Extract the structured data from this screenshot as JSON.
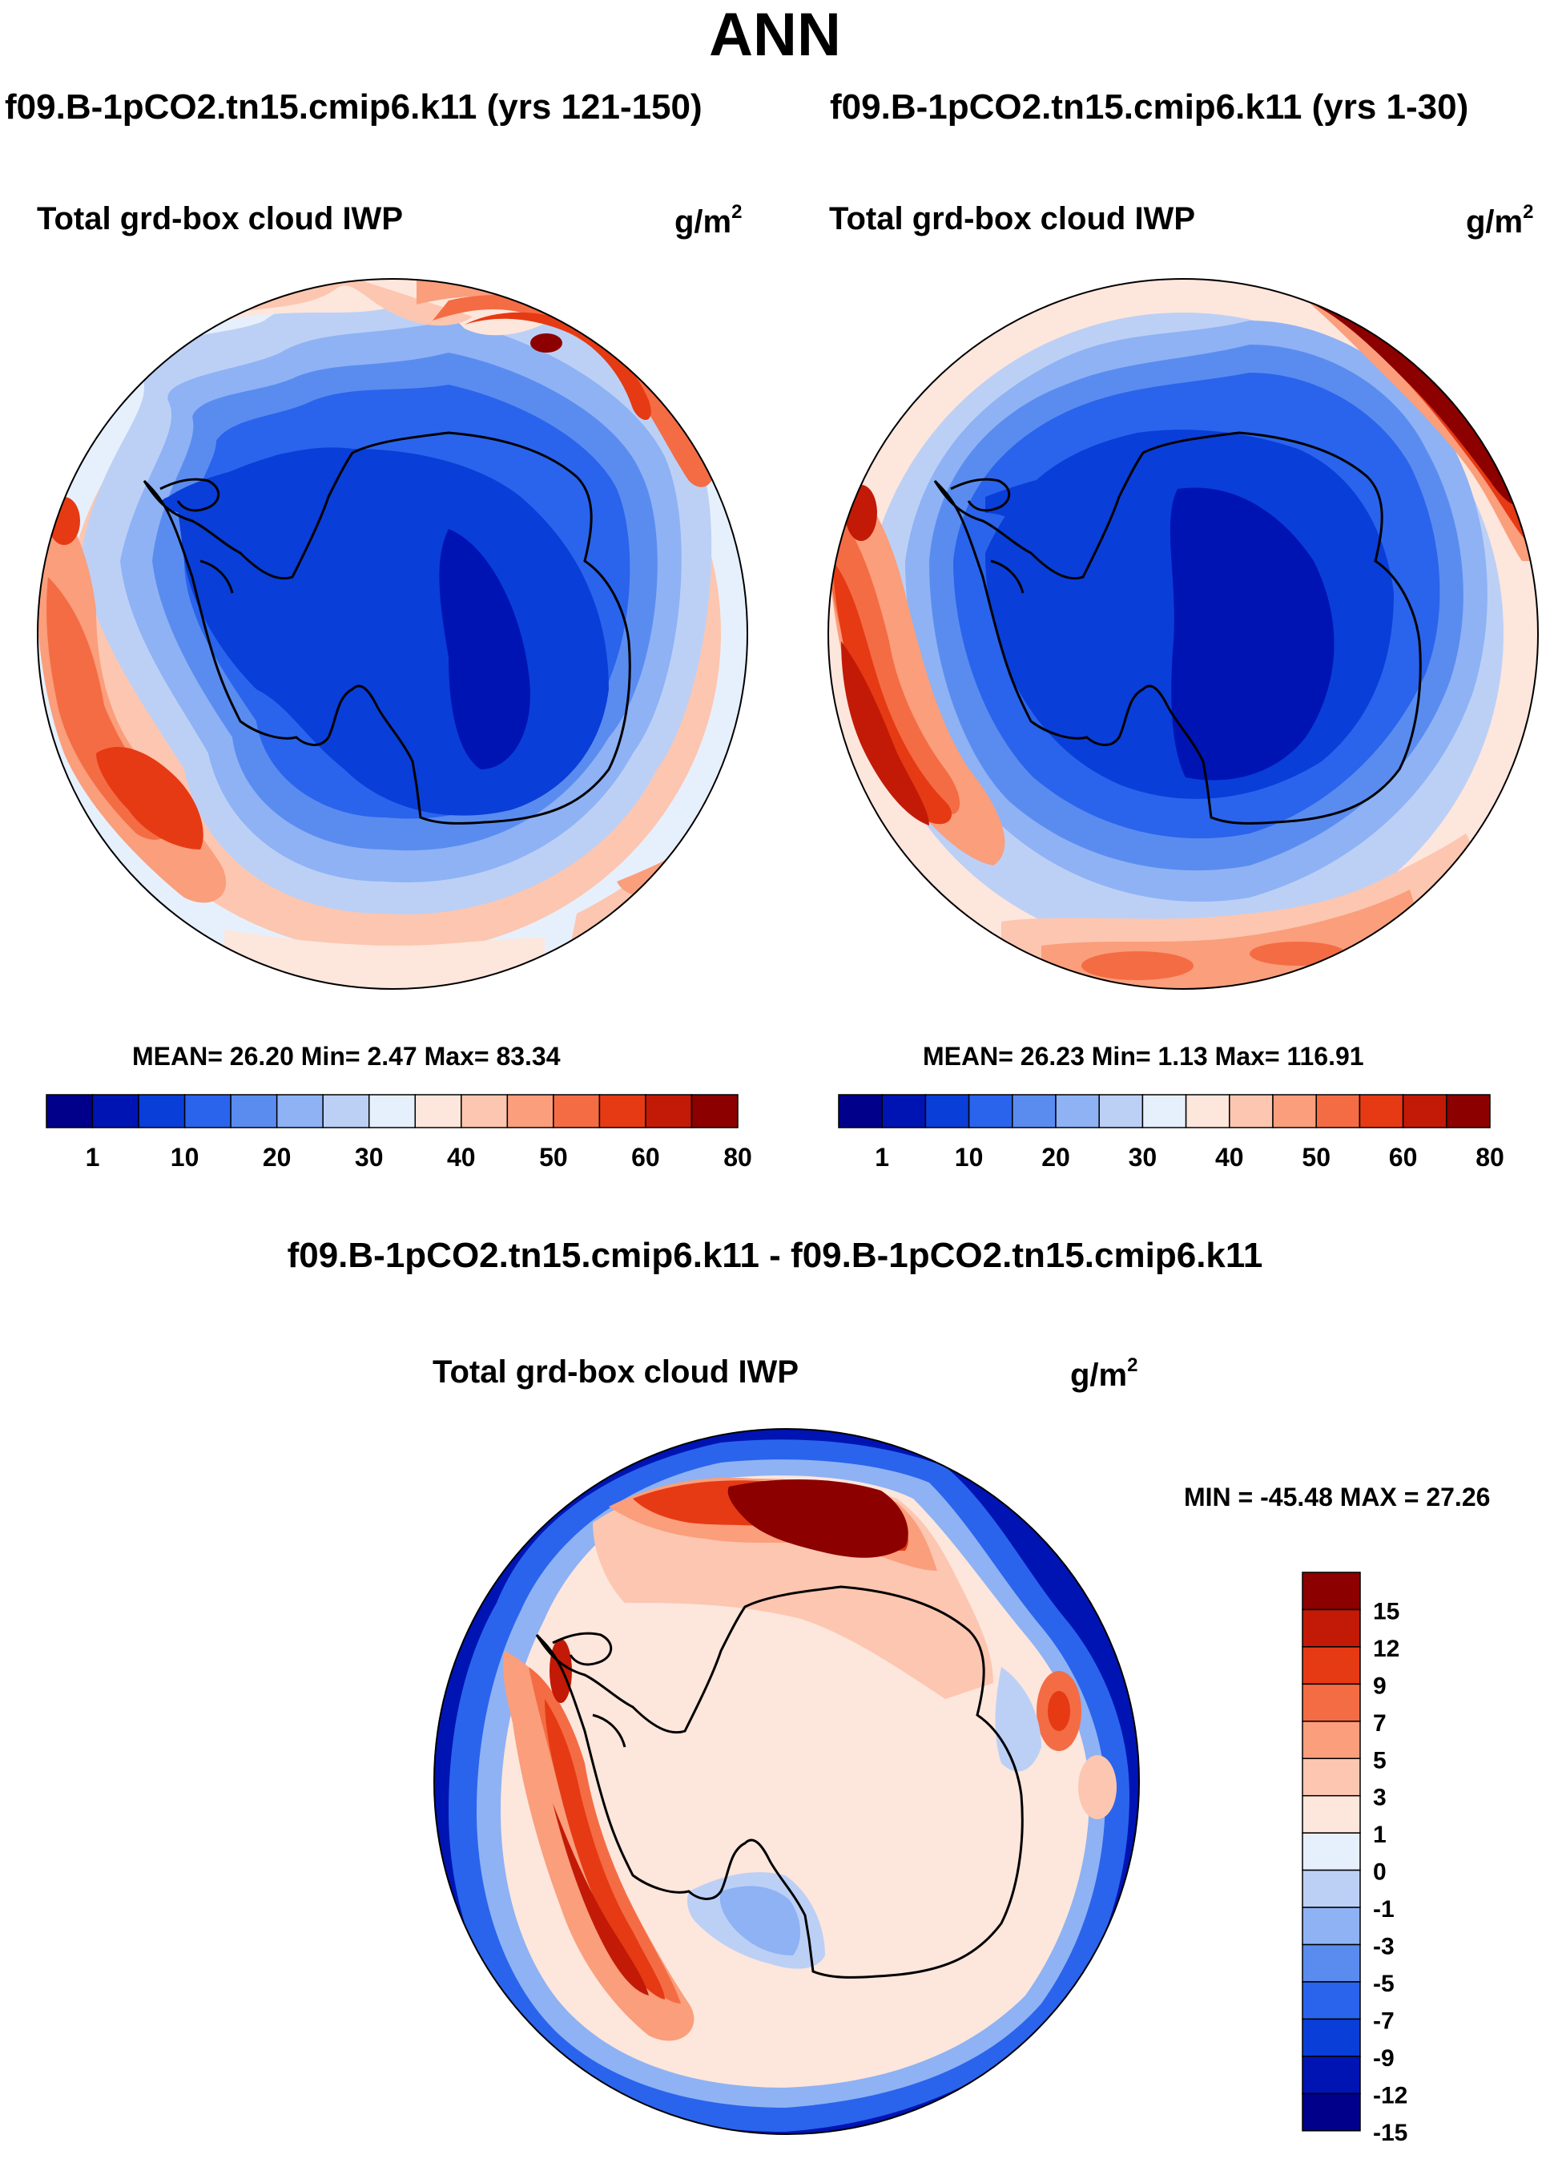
{
  "title": "ANN",
  "panels": [
    {
      "case_title": "f09.B-1pCO2.tn15.cmip6.k11 (yrs 121-150)",
      "variable": "Total grd-box cloud IWP",
      "units_base": "g/m",
      "units_exp": "2",
      "stats": "MEAN=  26.20  Min=   2.47  Max=  83.34"
    },
    {
      "case_title": "f09.B-1pCO2.tn15.cmip6.k11 (yrs 1-30)",
      "variable": "Total grd-box cloud IWP",
      "units_base": "g/m",
      "units_exp": "2",
      "stats": "MEAN=  26.23  Min=   1.13  Max= 116.91"
    }
  ],
  "difference": {
    "title": "f09.B-1pCO2.tn15.cmip6.k11 - f09.B-1pCO2.tn15.cmip6.k11",
    "variable": "Total grd-box cloud IWP",
    "units_base": "g/m",
    "units_exp": "2",
    "stats": "MIN = -45.48 MAX =  27.26"
  },
  "chart_data": [
    {
      "type": "heatmap",
      "title": "f09.B-1pCO2.tn15.cmip6.k11 (yrs 121-150)",
      "projection": "south-polar stereographic",
      "variable": "Total grd-box cloud IWP",
      "units": "g/m^2",
      "mean": 26.2,
      "min": 2.47,
      "max": 83.34,
      "colorbar": {
        "orientation": "horizontal",
        "tick_labels": [
          "1",
          "10",
          "20",
          "30",
          "40",
          "50",
          "60",
          "80"
        ],
        "colors": [
          "#00008a",
          "#0014b4",
          "#0a3ed8",
          "#2a64ec",
          "#5a8cf0",
          "#8eb2f4",
          "#bcd0f6",
          "#e6f0fc",
          "#fde6dc",
          "#fcc6b0",
          "#fa9e7c",
          "#f46c44",
          "#e63a14",
          "#c21a06",
          "#8c0000"
        ]
      }
    },
    {
      "type": "heatmap",
      "title": "f09.B-1pCO2.tn15.cmip6.k11 (yrs 1-30)",
      "projection": "south-polar stereographic",
      "variable": "Total grd-box cloud IWP",
      "units": "g/m^2",
      "mean": 26.23,
      "min": 1.13,
      "max": 116.91,
      "colorbar": {
        "orientation": "horizontal",
        "tick_labels": [
          "1",
          "10",
          "20",
          "30",
          "40",
          "50",
          "60",
          "80"
        ],
        "colors": [
          "#00008a",
          "#0014b4",
          "#0a3ed8",
          "#2a64ec",
          "#5a8cf0",
          "#8eb2f4",
          "#bcd0f6",
          "#e6f0fc",
          "#fde6dc",
          "#fcc6b0",
          "#fa9e7c",
          "#f46c44",
          "#e63a14",
          "#c21a06",
          "#8c0000"
        ]
      }
    },
    {
      "type": "heatmap",
      "title": "f09.B-1pCO2.tn15.cmip6.k11 - f09.B-1pCO2.tn15.cmip6.k11",
      "projection": "south-polar stereographic",
      "variable": "Total grd-box cloud IWP",
      "units": "g/m^2",
      "min": -45.48,
      "max": 27.26,
      "colorbar": {
        "orientation": "vertical",
        "tick_labels": [
          "15",
          "12",
          "9",
          "7",
          "5",
          "3",
          "1",
          "0",
          "-1",
          "-3",
          "-5",
          "-7",
          "-9",
          "-12",
          "-15"
        ],
        "colors": [
          "#8c0000",
          "#c21a06",
          "#e63a14",
          "#f46c44",
          "#fa9e7c",
          "#fcc6b0",
          "#fde6dc",
          "#e6f0fc",
          "#bcd0f6",
          "#8eb2f4",
          "#5a8cf0",
          "#2a64ec",
          "#0a3ed8",
          "#0014b4",
          "#00008a"
        ]
      }
    }
  ]
}
